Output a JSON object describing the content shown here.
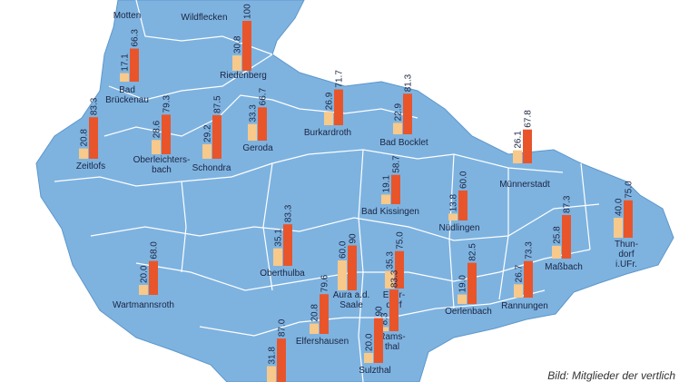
{
  "towns": [
    {
      "name_lines": [
        "Motten"
      ]
    },
    {
      "name_lines": [
        "Wildflecken"
      ]
    },
    {
      "name_lines": [
        "Riedenberg"
      ],
      "values": [
        30.8,
        100
      ],
      "value_labels": [
        "30.8",
        "100"
      ]
    },
    {
      "name_lines": [
        "Bad",
        "Brückenau"
      ],
      "values": [
        17.1,
        66.3
      ],
      "value_labels": [
        "17.1",
        "66.3"
      ]
    },
    {
      "name_lines": [
        "Zeitlofs"
      ],
      "values": [
        20.8,
        83.3
      ],
      "value_labels": [
        "20.8",
        "83.3"
      ]
    },
    {
      "name_lines": [
        "Oberleichters-",
        "bach"
      ],
      "values": [
        28.6,
        79.3
      ],
      "value_labels": [
        "28.6",
        "79.3"
      ]
    },
    {
      "name_lines": [
        "Schondra"
      ],
      "values": [
        29.2,
        87.5
      ],
      "value_labels": [
        "29.2",
        "87.5"
      ]
    },
    {
      "name_lines": [
        "Geroda"
      ],
      "values": [
        33.3,
        66.7
      ],
      "value_labels": [
        "33.3",
        "66.7"
      ]
    },
    {
      "name_lines": [
        "Burkardroth"
      ],
      "values": [
        26.9,
        71.7
      ],
      "value_labels": [
        "26.9",
        "71.7"
      ]
    },
    {
      "name_lines": [
        "Bad Bocklet"
      ],
      "values": [
        22.9,
        81.3
      ],
      "value_labels": [
        "22.9",
        "81.3"
      ]
    },
    {
      "name_lines": [
        "Münnerstadt"
      ],
      "values": [
        26.1,
        67.8
      ],
      "value_labels": [
        "26.1",
        "67.8"
      ]
    },
    {
      "name_lines": [
        "Bad Kissingen"
      ],
      "values": [
        19.1,
        58.7
      ],
      "value_labels": [
        "19.1",
        "58.7"
      ]
    },
    {
      "name_lines": [
        "Nüdlingen"
      ],
      "values": [
        13.8,
        60.0
      ],
      "value_labels": [
        "13.8",
        "60.0"
      ]
    },
    {
      "name_lines": [
        "Thun-",
        "dorf",
        "i.UFr."
      ],
      "values": [
        40.0,
        75.0
      ],
      "value_labels": [
        "40.0",
        "75.0"
      ]
    },
    {
      "name_lines": [
        "Maßbach"
      ],
      "values": [
        25.8,
        87.3
      ],
      "value_labels": [
        "25.8",
        "87.3"
      ]
    },
    {
      "name_lines": [
        "Rannungen"
      ],
      "values": [
        26.7,
        73.3
      ],
      "value_labels": [
        "26.7",
        "73.3"
      ]
    },
    {
      "name_lines": [
        "Oerlenbach"
      ],
      "values": [
        19.0,
        82.5
      ],
      "value_labels": [
        "19.0",
        "82.5"
      ]
    },
    {
      "name_lines": [
        "Oberthulba"
      ],
      "values": [
        35.1,
        83.3
      ],
      "value_labels": [
        "35.1",
        "83.3"
      ]
    },
    {
      "name_lines": [
        "Wartmannsroth"
      ],
      "values": [
        20.0,
        68.0
      ],
      "value_labels": [
        "20.0",
        "68.0"
      ]
    },
    {
      "name_lines": [
        "Aura a.d.",
        "Saale"
      ],
      "values": [
        60.0,
        90
      ],
      "value_labels": [
        "60.0",
        "90"
      ]
    },
    {
      "name_lines": [
        "Euer-",
        "dorf"
      ],
      "values": [
        35.3,
        75.0
      ],
      "value_labels": [
        "35.3",
        "75.0"
      ]
    },
    {
      "name_lines": [
        "Rams-",
        "thal"
      ],
      "values": [
        8.3,
        83.3
      ],
      "value_labels": [
        "8.3",
        "83.3"
      ]
    },
    {
      "name_lines": [
        "Elfershausen"
      ],
      "values": [
        20.8,
        79.6
      ],
      "value_labels": [
        "20.8",
        "79.6"
      ]
    },
    {
      "name_lines": [
        "Sulzthal"
      ],
      "values": [
        20.0,
        90
      ],
      "value_labels": [
        "20.0",
        "90"
      ]
    },
    {
      "values": [
        31.8,
        87.0
      ],
      "value_labels": [
        "31.8",
        "87.0"
      ]
    }
  ],
  "caption": "Bild: Mitglieder der vertlich"
}
